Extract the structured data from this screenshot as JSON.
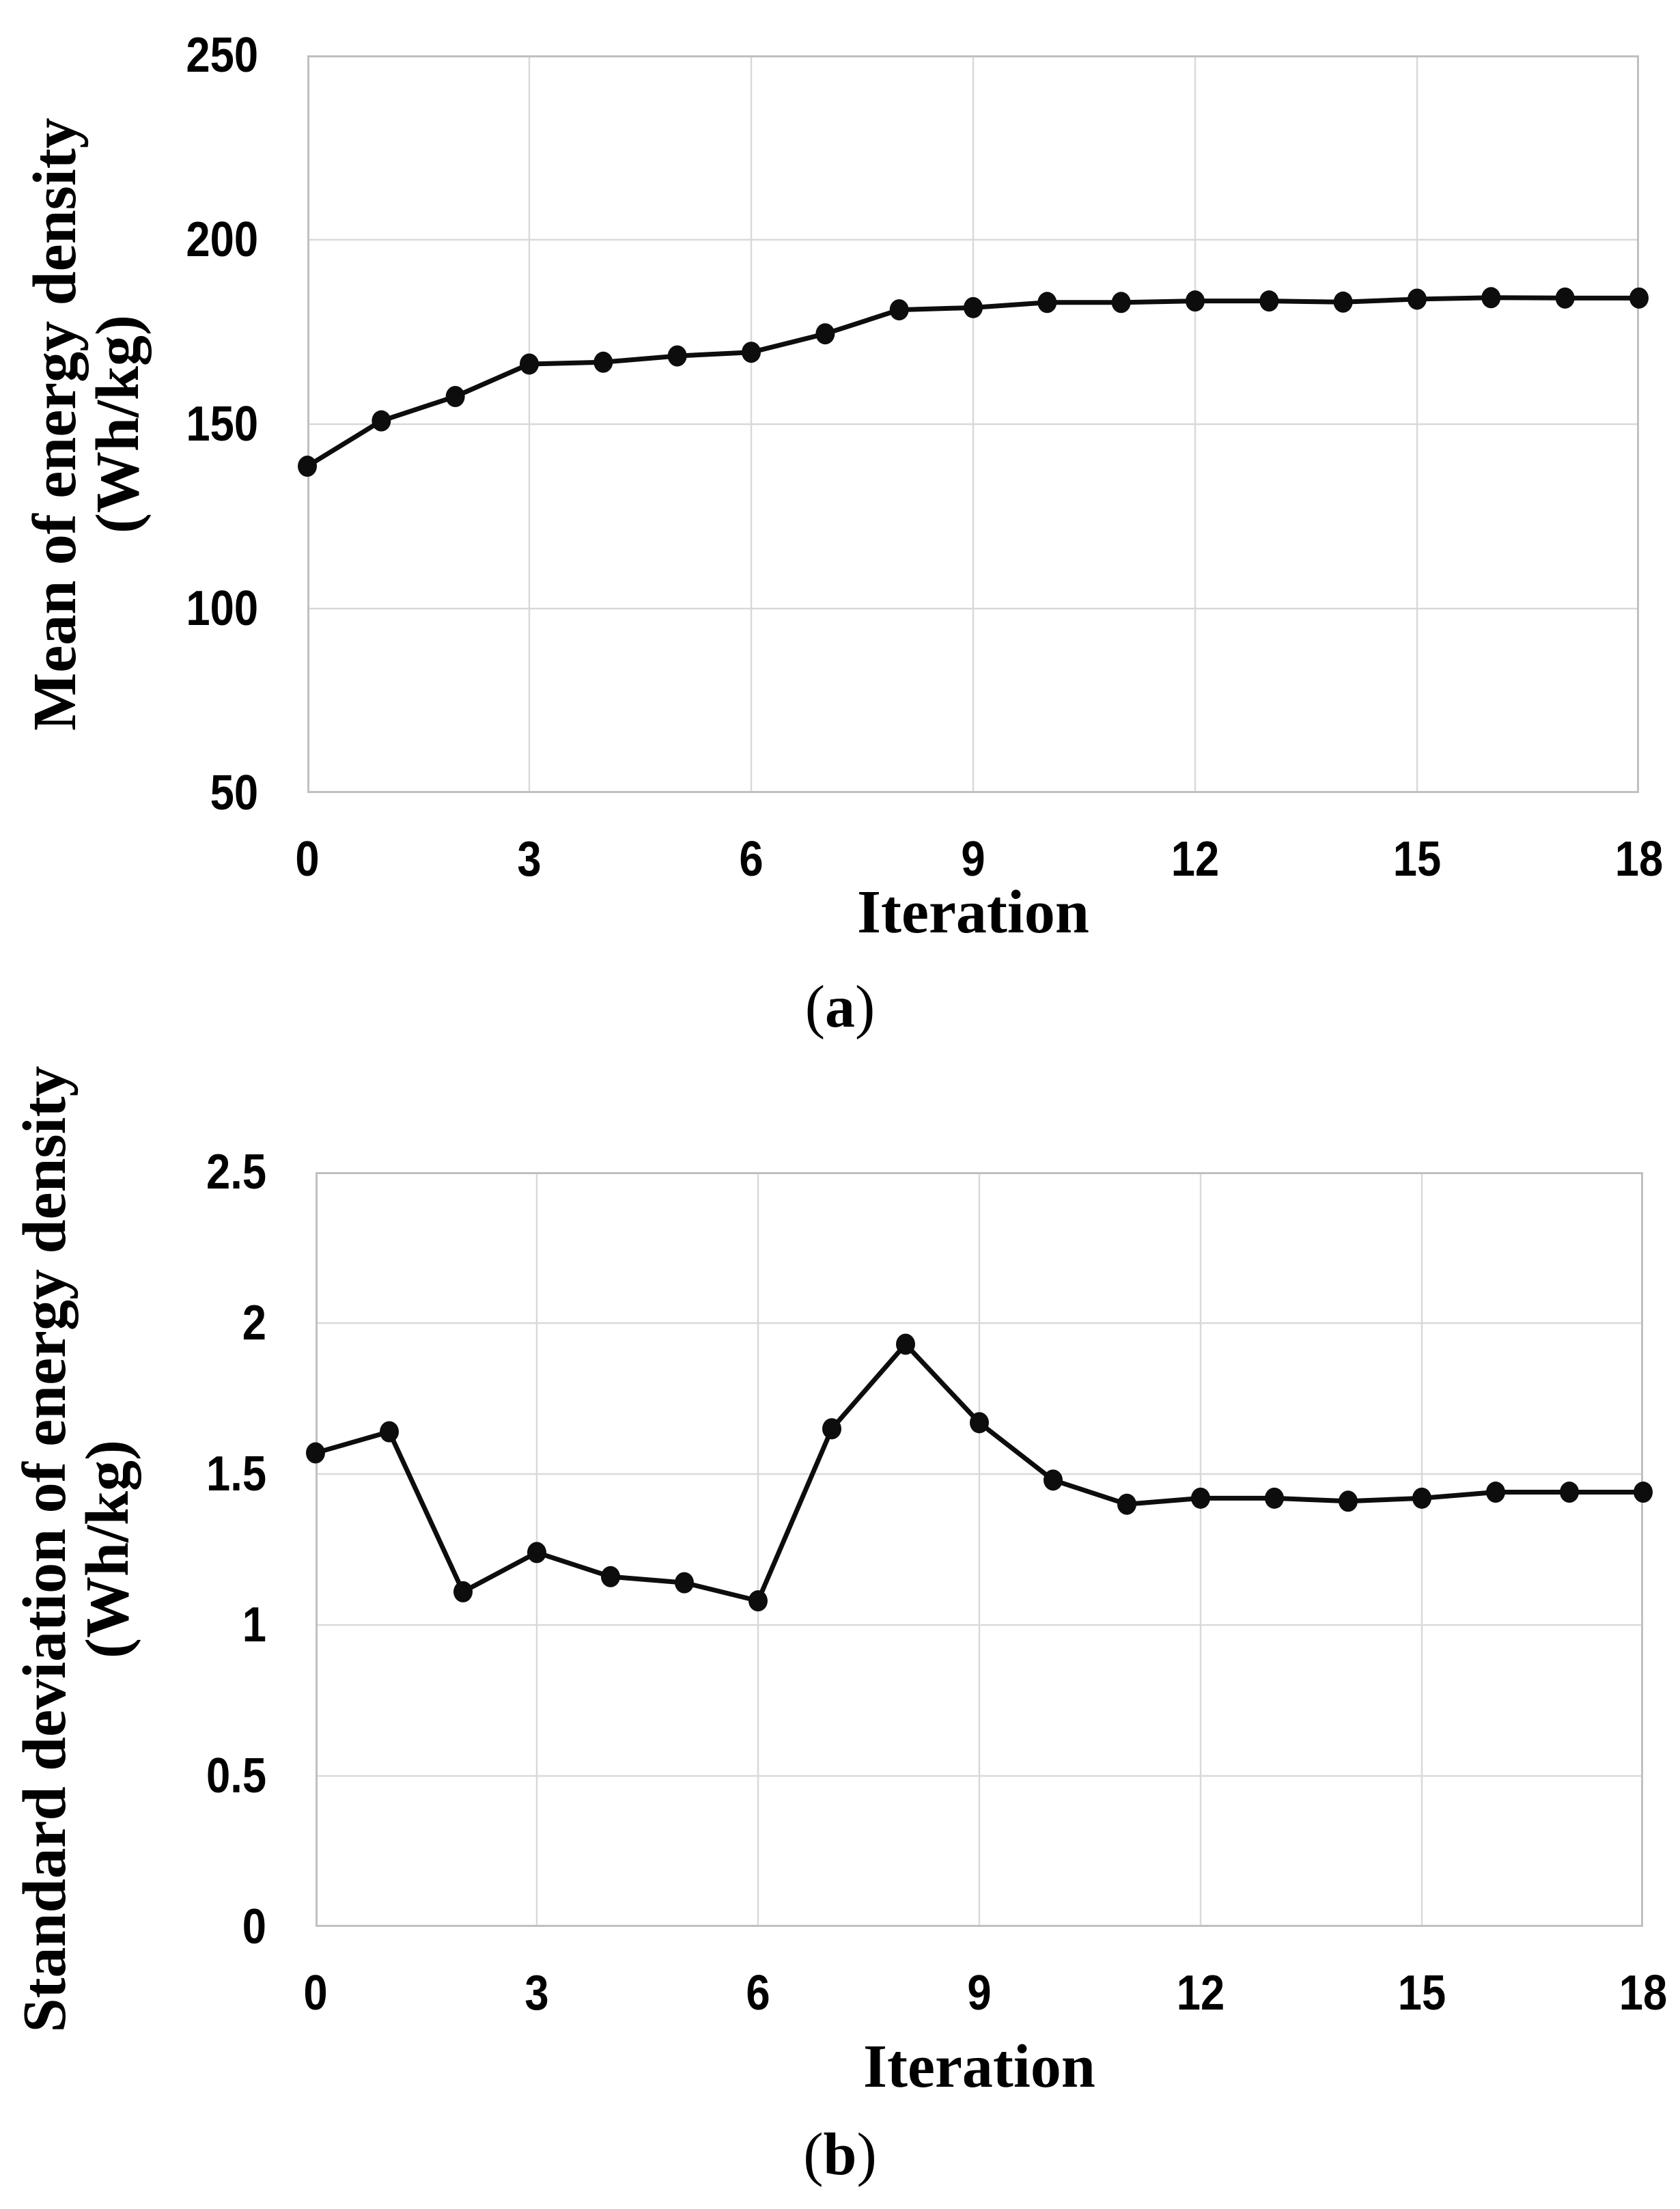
{
  "figure": {
    "background": "#ffffff",
    "text_color": "#000000",
    "grid_color": "#d9d9d9",
    "border_color": "#c0c0c0",
    "line_color": "#0d0d0d",
    "panels": [
      {
        "id": "a",
        "caption_open": "(",
        "caption_letter": "a",
        "caption_close": ")",
        "y_title_line1": "Mean of energy density",
        "y_title_line2": "(Wh/kg)"
      },
      {
        "id": "b",
        "caption_open": "(",
        "caption_letter": "b",
        "caption_close": ")",
        "y_title_line1": "Standard deviation of energy density",
        "y_title_line2": "(Wh/kg)"
      }
    ]
  },
  "chart_data": [
    {
      "type": "line",
      "title": "",
      "xlabel": "Iteration",
      "ylabel": "Mean of energy density (Wh/kg)",
      "panel_label": "(a)",
      "x": [
        0,
        1,
        2,
        3,
        4,
        5,
        6,
        7,
        8,
        9,
        10,
        11,
        12,
        13,
        14,
        15,
        16,
        17,
        18
      ],
      "values": [
        138.6,
        150.9,
        157.5,
        166.3,
        166.8,
        168.5,
        169.5,
        174.5,
        181.0,
        181.6,
        183.0,
        183.0,
        183.4,
        183.4,
        183.1,
        183.9,
        184.3,
        184.2,
        184.2
      ],
      "xlim": [
        0,
        18
      ],
      "ylim": [
        50,
        250
      ],
      "xticks": [
        0,
        3,
        6,
        9,
        12,
        15,
        18
      ],
      "xtick_labels": [
        "0",
        "3",
        "6",
        "9",
        "12",
        "15",
        "18"
      ],
      "yticks": [
        50,
        100,
        150,
        200,
        250
      ],
      "ytick_labels": [
        "50",
        "100",
        "150",
        "200",
        "250"
      ],
      "grid": true,
      "legend": "none",
      "marker": "circle"
    },
    {
      "type": "line",
      "title": "",
      "xlabel": "Iteration",
      "ylabel": "Standard deviation of energy density (Wh/kg)",
      "panel_label": "(b)",
      "x": [
        0,
        1,
        2,
        3,
        4,
        5,
        6,
        7,
        8,
        9,
        10,
        11,
        12,
        13,
        14,
        15,
        16,
        17,
        18
      ],
      "values": [
        1.57,
        1.64,
        1.11,
        1.24,
        1.16,
        1.14,
        1.08,
        1.65,
        1.93,
        1.67,
        1.48,
        1.4,
        1.42,
        1.42,
        1.41,
        1.42,
        1.44,
        1.44,
        1.44
      ],
      "xlim": [
        0,
        18
      ],
      "ylim": [
        0,
        2.5
      ],
      "xticks": [
        0,
        3,
        6,
        9,
        12,
        15,
        18
      ],
      "xtick_labels": [
        "0",
        "3",
        "6",
        "9",
        "12",
        "15",
        "18"
      ],
      "yticks": [
        0,
        0.5,
        1,
        1.5,
        2,
        2.5
      ],
      "ytick_labels": [
        "0",
        "0.5",
        "1",
        "1.5",
        "2",
        "2.5"
      ],
      "grid": true,
      "legend": "none",
      "marker": "circle"
    }
  ]
}
